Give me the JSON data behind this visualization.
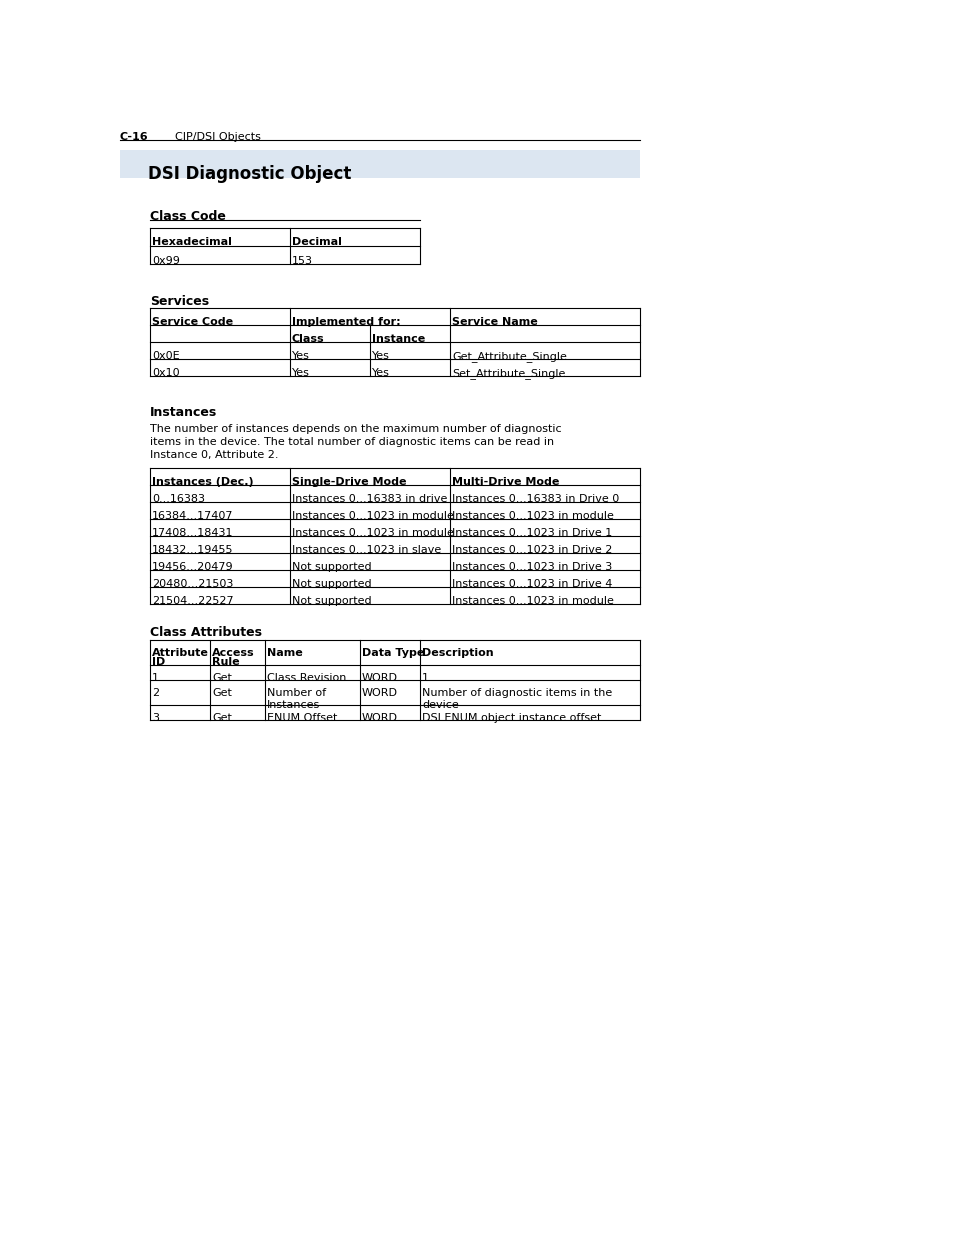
{
  "page_bg": "#ffffff",
  "top_label_left": "C-16",
  "top_label_right": "CIP/DSI Objects",
  "section_title": "DSI Diagnostic Object",
  "section_title_bg": "#dce6f1",
  "class_code_title": "Class Code",
  "class_code_headers": [
    "Hexadecimal",
    "Decimal"
  ],
  "class_code_rows": [
    [
      "0x99",
      "153"
    ]
  ],
  "services_title": "Services",
  "services_headers_row1": [
    "Service Code",
    "Implemented for:",
    "",
    "Service Name"
  ],
  "services_headers_row2": [
    "",
    "Class",
    "Instance",
    ""
  ],
  "services_rows": [
    [
      "0x0E",
      "Yes",
      "Yes",
      "Get_Attribute_Single"
    ],
    [
      "0x10",
      "Yes",
      "Yes",
      "Set_Attribute_Single"
    ]
  ],
  "instances_title": "Instances",
  "instances_para": "The number of instances depends on the maximum number of diagnostic\nitems in the device. The total number of diagnostic items can be read in\nInstance 0, Attribute 2.",
  "instances_headers": [
    "Instances (Dec.)",
    "Single-Drive Mode",
    "Multi-Drive Mode"
  ],
  "instances_rows": [
    [
      "0...16383",
      "Instances 0...16383 in drive",
      "Instances 0...16383 in Drive 0"
    ],
    [
      "16384...17407",
      "Instances 0...1023 in module",
      "Instances 0...1023 in module"
    ],
    [
      "17408...18431",
      "Instances 0...1023 in module",
      "Instances 0...1023 in Drive 1"
    ],
    [
      "18432...19455",
      "Instances 0...1023 in slave",
      "Instances 0...1023 in Drive 2"
    ],
    [
      "19456...20479",
      "Not supported",
      "Instances 0...1023 in Drive 3"
    ],
    [
      "20480...21503",
      "Not supported",
      "Instances 0...1023 in Drive 4"
    ],
    [
      "21504...22527",
      "Not supported",
      "Instances 0...1023 in module"
    ]
  ],
  "class_attr_title": "Class Attributes",
  "class_attr_headers": [
    "Attribute\nID",
    "Access\nRule",
    "Name",
    "Data Type",
    "Description"
  ],
  "class_attr_rows": [
    [
      "1",
      "Get",
      "Class Revision",
      "WORD",
      "1"
    ],
    [
      "2",
      "Get",
      "Number of\nInstances",
      "WORD",
      "Number of diagnostic items in the\ndevice"
    ],
    [
      "3",
      "Get",
      "ENUM Offset",
      "WORD",
      "DSI ENUM object instance offset"
    ]
  ]
}
